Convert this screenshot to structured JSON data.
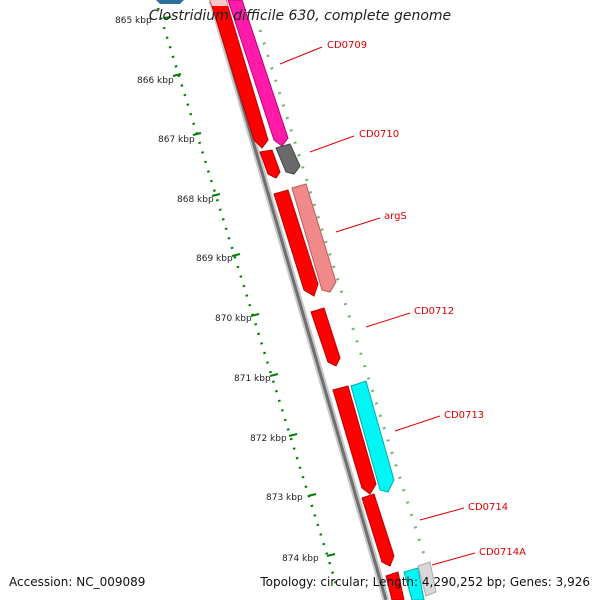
{
  "title": "Clostridium difficile 630, complete genome",
  "accession": "Accession: NC_009089",
  "summary": "Topology: circular; Length: 4,290,252 bp; Genes: 3,926",
  "ticks": [
    {
      "label": "865 kbp"
    },
    {
      "label": "866 kbp"
    },
    {
      "label": "867 kbp"
    },
    {
      "label": "868 kbp"
    },
    {
      "label": "869 kbp"
    },
    {
      "label": "870 kbp"
    },
    {
      "label": "871 kbp"
    },
    {
      "label": "872 kbp"
    },
    {
      "label": "873 kbp"
    },
    {
      "label": "874 kbp"
    }
  ],
  "genes": [
    {
      "label": "CD0709"
    },
    {
      "label": "CD0710"
    },
    {
      "label": "argS"
    },
    {
      "label": "CD0712"
    },
    {
      "label": "CD0713"
    },
    {
      "label": "CD0714"
    },
    {
      "label": "CD0714A"
    }
  ],
  "colors": {
    "cds": "#ff0000",
    "tick": "#008000",
    "backbone": "#8a8a8a",
    "label": "#e00000"
  }
}
